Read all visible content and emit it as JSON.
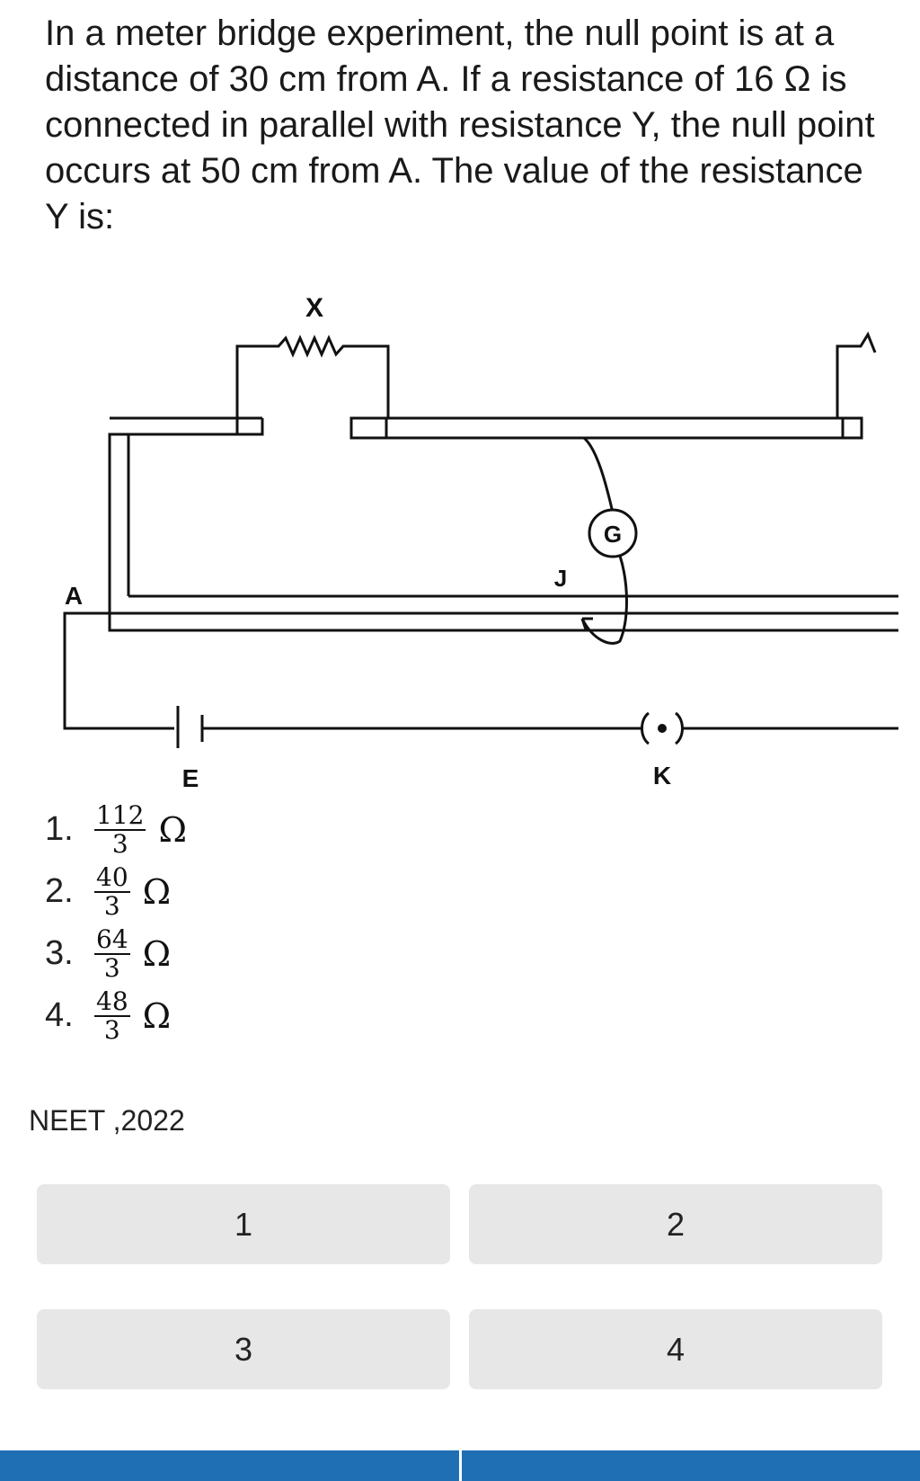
{
  "question": {
    "text": "In a meter bridge experiment, the null point is at a distance of 30 cm from A. If a resistance of 16 Ω is connected in parallel with resistance Y, the null point occurs at 50 cm from A. The value of the resistance Y is:"
  },
  "diagram": {
    "labels": {
      "x": "X",
      "a": "A",
      "g": "G",
      "j": "J",
      "e": "E",
      "k": "K"
    }
  },
  "options": [
    {
      "number": "1.",
      "numerator": "112",
      "denominator": "3",
      "unit": "Ω"
    },
    {
      "number": "2.",
      "numerator": "40",
      "denominator": "3",
      "unit": "Ω"
    },
    {
      "number": "3.",
      "numerator": "64",
      "denominator": "3",
      "unit": "Ω"
    },
    {
      "number": "4.",
      "numerator": "48",
      "denominator": "3",
      "unit": "Ω"
    }
  ],
  "source": "NEET ,2022",
  "answer_buttons": [
    "1",
    "2",
    "3",
    "4"
  ],
  "colors": {
    "button_bg": "#e7e7e7",
    "bottom_bar": "#1f6fb5"
  }
}
